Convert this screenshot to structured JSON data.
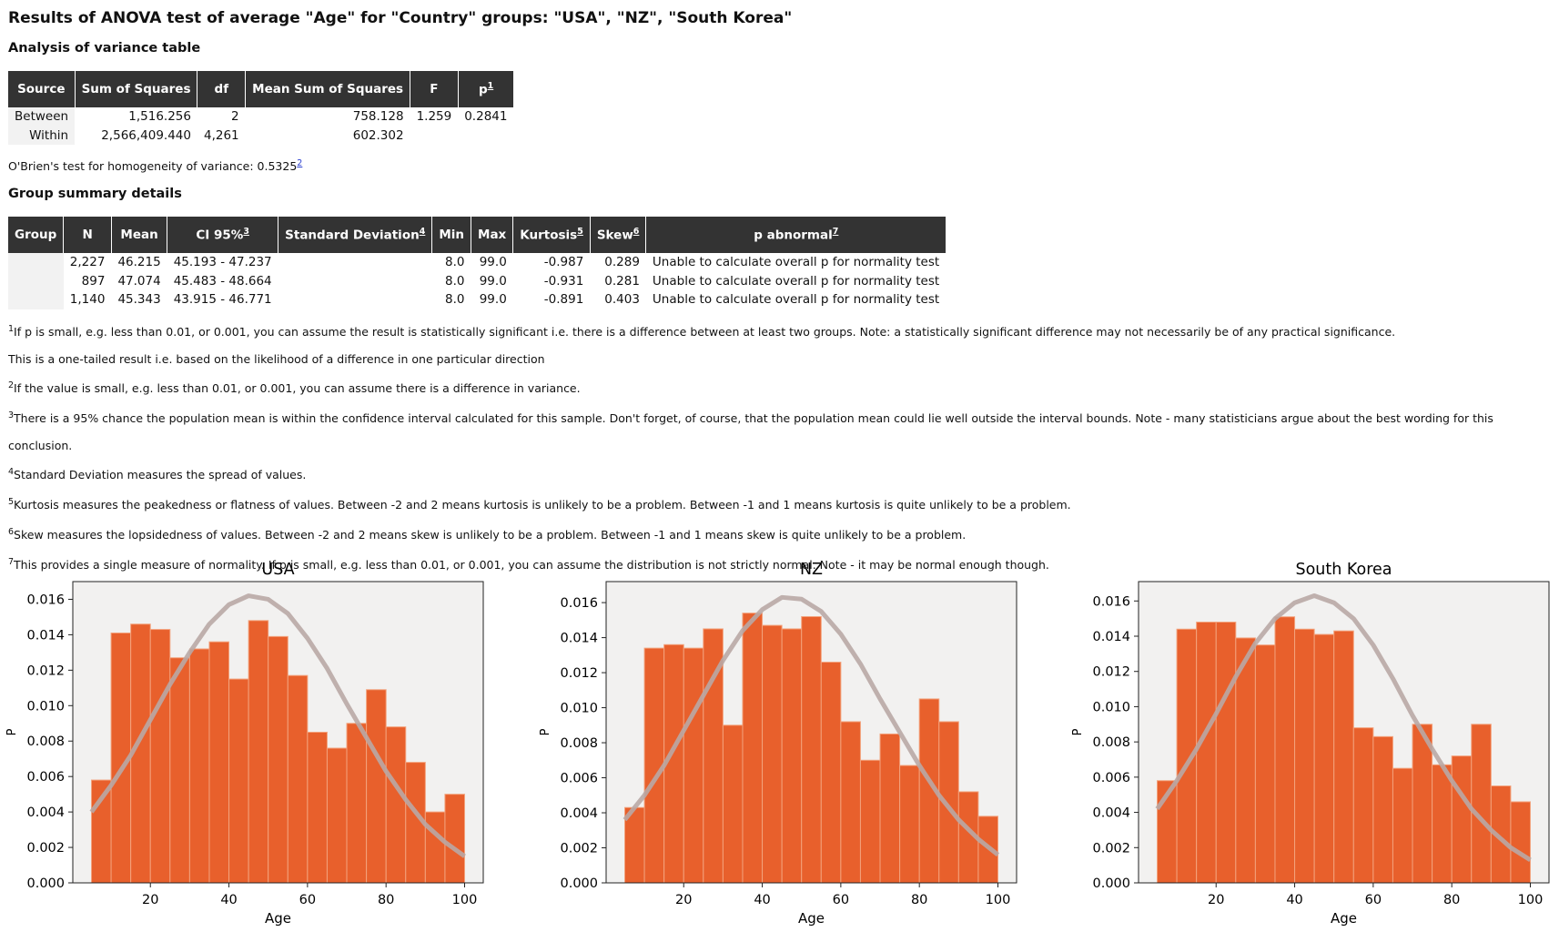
{
  "title": "Results of ANOVA test of average \"Age\" for \"Country\" groups: \"USA\", \"NZ\", \"South Korea\"",
  "anova": {
    "heading": "Analysis of variance table",
    "columns": [
      {
        "label": "Source"
      },
      {
        "label": "Sum of Squares"
      },
      {
        "label": "df"
      },
      {
        "label": "Mean Sum of Squares"
      },
      {
        "label": "F"
      },
      {
        "label": "p",
        "note": "1"
      }
    ],
    "rows": [
      {
        "source": "Between",
        "ss": "1,516.256",
        "df": "2",
        "mss": "758.128",
        "f": "1.259",
        "p": "0.2841"
      },
      {
        "source": "Within",
        "ss": "2,566,409.440",
        "df": "4,261",
        "mss": "602.302"
      }
    ]
  },
  "obrien": {
    "text": "O'Brien's test for homogeneity of variance: 0.5325",
    "note": "2"
  },
  "group_summary": {
    "heading": "Group summary details",
    "columns": [
      {
        "label": "Group"
      },
      {
        "label": "N"
      },
      {
        "label": "Mean"
      },
      {
        "label": "CI 95%",
        "note": "3"
      },
      {
        "label": "Standard Deviation",
        "note": "4"
      },
      {
        "label": "Min"
      },
      {
        "label": "Max"
      },
      {
        "label": "Kurtosis",
        "note": "5"
      },
      {
        "label": "Skew",
        "note": "6"
      },
      {
        "label": "p abnormal",
        "note": "7"
      }
    ],
    "rows": [
      {
        "n": "2,227",
        "mean": "46.215",
        "ci": "45.193 - 47.237",
        "min": "8.0",
        "max": "99.0",
        "kurtosis": "-0.987",
        "skew": "0.289",
        "p_abnormal": "Unable to calculate overall p for normality test"
      },
      {
        "n": "897",
        "mean": "47.074",
        "ci": "45.483 - 48.664",
        "min": "8.0",
        "max": "99.0",
        "kurtosis": "-0.931",
        "skew": "0.281",
        "p_abnormal": "Unable to calculate overall p for normality test"
      },
      {
        "n": "1,140",
        "mean": "45.343",
        "ci": "43.915 - 46.771",
        "min": "8.0",
        "max": "99.0",
        "kurtosis": "-0.891",
        "skew": "0.403",
        "p_abnormal": "Unable to calculate overall p for normality test"
      }
    ]
  },
  "notes": [
    {
      "mark": "1",
      "text": "If p is small, e.g. less than 0.01, or 0.001, you can assume the result is statistically significant i.e. there is a difference between at least two groups. Note: a statistically significant difference may not necessarily be of any practical significance."
    },
    {
      "text": "This is a one-tailed result i.e. based on the likelihood of a difference in one particular direction"
    },
    {
      "mark": "2",
      "text": "If the value is small, e.g. less than 0.01, or 0.001, you can assume there is a difference in variance."
    },
    {
      "mark": "3",
      "text": "There is a 95% chance the population mean is within the confidence interval calculated for this sample. Don't forget, of course, that the population mean could lie well outside the interval bounds. Note - many statisticians argue about the best wording for this conclusion."
    },
    {
      "mark": "4",
      "text": "Standard Deviation measures the spread of values."
    },
    {
      "mark": "5",
      "text": "Kurtosis measures the peakedness or flatness of values. Between -2 and 2 means kurtosis is unlikely to be a problem. Between -1 and 1 means kurtosis is quite unlikely to be a problem."
    },
    {
      "mark": "6",
      "text": "Skew measures the lopsidedness of values. Between -2 and 2 means skew is unlikely to be a problem. Between -1 and 1 means skew is quite unlikely to be a problem."
    },
    {
      "mark": "7",
      "text": "This provides a single measure of normality. If p is small, e.g. less than 0.01, or 0.001, you can assume the distribution is not strictly normal. Note - it may be normal enough though."
    }
  ],
  "chart_data": [
    {
      "type": "histogram",
      "title": "USA",
      "x_label": "Age",
      "y_label": "P",
      "color": "#e8602c",
      "bins": [
        5,
        10,
        15,
        20,
        25,
        30,
        35,
        40,
        45,
        50,
        55,
        60,
        65,
        70,
        75,
        80,
        85,
        90,
        95,
        100
      ],
      "values": [
        0.0058,
        0.0141,
        0.0146,
        0.0143,
        0.0127,
        0.0132,
        0.0136,
        0.0115,
        0.0148,
        0.0139,
        0.0117,
        0.0085,
        0.0076,
        0.009,
        0.0109,
        0.0088,
        0.0068,
        0.004,
        0.005
      ],
      "x": [
        5,
        10,
        15,
        20,
        25,
        30,
        35,
        40,
        45,
        50,
        55,
        60,
        65,
        70,
        75,
        80,
        85,
        90,
        95,
        100
      ],
      "series": [
        {
          "color": "#b9a9a5",
          "values": [
            0.004,
            0.0055,
            0.0072,
            0.0092,
            0.0112,
            0.013,
            0.0146,
            0.0157,
            0.0162,
            0.016,
            0.0152,
            0.0138,
            0.0121,
            0.0101,
            0.0082,
            0.0063,
            0.0047,
            0.0033,
            0.0023,
            0.0015
          ]
        }
      ],
      "xlim": [
        0.25,
        104.75
      ],
      "xticks": [
        20,
        40,
        60,
        80,
        100
      ],
      "ylim": [
        0,
        0.017
      ],
      "yticks": [
        {
          "value": 0,
          "label": "0.000"
        },
        {
          "value": 0.002,
          "label": "0.002"
        },
        {
          "value": 0.004,
          "label": "0.004"
        },
        {
          "value": 0.006,
          "label": "0.006"
        },
        {
          "value": 0.008,
          "label": "0.008"
        },
        {
          "value": 0.01,
          "label": "0.010"
        },
        {
          "value": 0.012,
          "label": "0.012"
        },
        {
          "value": 0.014,
          "label": "0.014"
        },
        {
          "value": 0.016,
          "label": "0.016"
        }
      ]
    },
    {
      "type": "histogram",
      "title": "NZ",
      "x_label": "Age",
      "y_label": "P",
      "color": "#e8602c",
      "bins": [
        5,
        10,
        15,
        20,
        25,
        30,
        35,
        40,
        45,
        50,
        55,
        60,
        65,
        70,
        75,
        80,
        85,
        90,
        95,
        100
      ],
      "values": [
        0.0043,
        0.0134,
        0.0136,
        0.0134,
        0.0145,
        0.009,
        0.0154,
        0.0147,
        0.0145,
        0.0152,
        0.0126,
        0.0092,
        0.007,
        0.0085,
        0.0067,
        0.0105,
        0.0092,
        0.0052,
        0.0038
      ],
      "x": [
        5,
        10,
        15,
        20,
        25,
        30,
        35,
        40,
        45,
        50,
        55,
        60,
        65,
        70,
        75,
        80,
        85,
        90,
        95,
        100
      ],
      "series": [
        {
          "color": "#b9a9a5",
          "values": [
            0.0036,
            0.005,
            0.0067,
            0.0087,
            0.0107,
            0.0127,
            0.0144,
            0.0156,
            0.0163,
            0.0162,
            0.0155,
            0.0142,
            0.0125,
            0.0105,
            0.0086,
            0.0067,
            0.005,
            0.0036,
            0.0025,
            0.0016
          ]
        }
      ],
      "xlim": [
        0.25,
        104.75
      ],
      "xticks": [
        20,
        40,
        60,
        80,
        100
      ],
      "ylim": [
        0,
        0.0172
      ],
      "yticks": [
        {
          "value": 0,
          "label": "0.000"
        },
        {
          "value": 0.002,
          "label": "0.002"
        },
        {
          "value": 0.004,
          "label": "0.004"
        },
        {
          "value": 0.006,
          "label": "0.006"
        },
        {
          "value": 0.008,
          "label": "0.008"
        },
        {
          "value": 0.01,
          "label": "0.010"
        },
        {
          "value": 0.012,
          "label": "0.012"
        },
        {
          "value": 0.014,
          "label": "0.014"
        },
        {
          "value": 0.016,
          "label": "0.016"
        }
      ]
    },
    {
      "type": "histogram",
      "title": "South Korea",
      "x_label": "Age",
      "y_label": "P",
      "color": "#e8602c",
      "bins": [
        5,
        10,
        15,
        20,
        25,
        30,
        35,
        40,
        45,
        50,
        55,
        60,
        65,
        70,
        75,
        80,
        85,
        90,
        95,
        100
      ],
      "values": [
        0.0058,
        0.0144,
        0.0148,
        0.0148,
        0.0139,
        0.0135,
        0.0151,
        0.0144,
        0.0141,
        0.0143,
        0.0088,
        0.0083,
        0.0065,
        0.009,
        0.0067,
        0.0072,
        0.009,
        0.0055,
        0.0046
      ],
      "x": [
        5,
        10,
        15,
        20,
        25,
        30,
        35,
        40,
        45,
        50,
        55,
        60,
        65,
        70,
        75,
        80,
        85,
        90,
        95,
        100
      ],
      "series": [
        {
          "color": "#b9a9a5",
          "values": [
            0.0042,
            0.0058,
            0.0076,
            0.0096,
            0.0117,
            0.0136,
            0.015,
            0.0159,
            0.0163,
            0.0159,
            0.015,
            0.0135,
            0.0116,
            0.0095,
            0.0076,
            0.0058,
            0.0042,
            0.003,
            0.002,
            0.0013
          ]
        }
      ],
      "xlim": [
        0.25,
        104.75
      ],
      "xticks": [
        20,
        40,
        60,
        80,
        100
      ],
      "ylim": [
        0,
        0.0171
      ],
      "yticks": [
        {
          "value": 0,
          "label": "0.000"
        },
        {
          "value": 0.002,
          "label": "0.002"
        },
        {
          "value": 0.004,
          "label": "0.004"
        },
        {
          "value": 0.006,
          "label": "0.006"
        },
        {
          "value": 0.008,
          "label": "0.008"
        },
        {
          "value": 0.01,
          "label": "0.010"
        },
        {
          "value": 0.012,
          "label": "0.012"
        },
        {
          "value": 0.014,
          "label": "0.014"
        },
        {
          "value": 0.016,
          "label": "0.016"
        }
      ]
    }
  ]
}
